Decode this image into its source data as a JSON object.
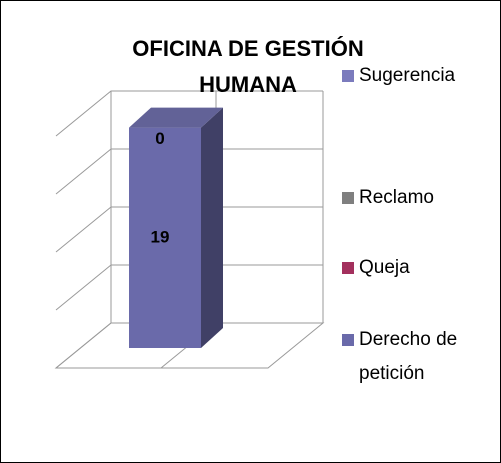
{
  "chart_data": {
    "type": "bar3d_stacked",
    "title": "OFICINA DE GESTIÓN HUMANA",
    "categories": [
      null
    ],
    "series": [
      {
        "name": "Sugerencia",
        "color": "#7b7bbd",
        "values": [
          0
        ],
        "show_label": true
      },
      {
        "name": "Reclamo",
        "color": "#7f7f7f",
        "values": [
          0
        ]
      },
      {
        "name": "Queja",
        "color": "#a3305d",
        "values": [
          0
        ]
      },
      {
        "name": "Derecho de petición",
        "color": "#6a6aaa",
        "values": [
          19
        ],
        "show_label": true
      }
    ],
    "ylim": [
      0,
      20
    ],
    "yticks": [
      0,
      5,
      10,
      15,
      20
    ],
    "grid": true,
    "legend": "right"
  }
}
